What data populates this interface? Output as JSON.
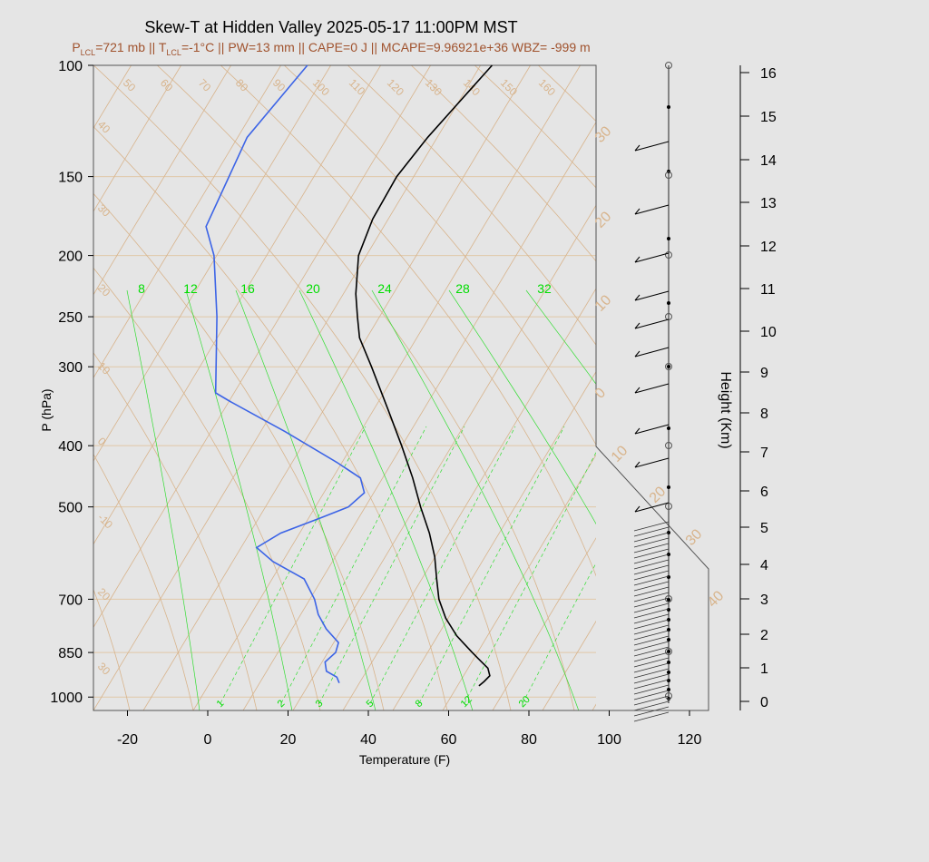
{
  "title": "Skew-T at Hidden Valley 2025-05-17 11:00PM MST",
  "subtitle": {
    "plcl_sym": "P",
    "plcl_sub": "LCL",
    "plcl_val": "=721 mb || ",
    "tlcl_sym": "T",
    "tlcl_sub": "LCL",
    "tlcl_val": "=-1°C || PW=13 mm || CAPE=0 J || MCAPE=9.96921e+36 WBZ= -999 m"
  },
  "colors": {
    "background": "#e5e5e5",
    "isotherm": "#d8b48c",
    "isobar": "#e0c8a8",
    "temperature": "#000000",
    "dewpoint": "#3c64e6",
    "mixing_ratio": "#33dd33",
    "subtitle": "#a0522d"
  },
  "chart_data": {
    "type": "skew-t",
    "xlabel": "Temperature (F)",
    "ylabel": "P (hPa)",
    "y2label": "Height (Km)",
    "x_ticks": [
      "-20",
      "0",
      "20",
      "40",
      "60",
      "80",
      "100",
      "120"
    ],
    "x_tick_values": [
      -20,
      0,
      20,
      40,
      60,
      80,
      100,
      120
    ],
    "p_ticks": [
      "100",
      "150",
      "200",
      "250",
      "300",
      "400",
      "500",
      "700",
      "850",
      "1000"
    ],
    "p_tick_values": [
      100,
      150,
      200,
      250,
      300,
      400,
      500,
      700,
      850,
      1000
    ],
    "height_ticks": [
      "0",
      "1",
      "2",
      "3",
      "4",
      "5",
      "6",
      "7",
      "8",
      "9",
      "10",
      "11",
      "12",
      "13",
      "14",
      "15",
      "16"
    ],
    "height_tick_values": [
      0,
      1,
      2,
      3,
      4,
      5,
      6,
      7,
      8,
      9,
      10,
      11,
      12,
      13,
      14,
      15,
      16
    ],
    "isotherm_labels_c": [
      "50",
      "60",
      "70",
      "80",
      "90",
      "100",
      "110",
      "120",
      "130",
      "140",
      "150",
      "160"
    ],
    "isotherm_left_labels": [
      "40",
      "30",
      "20",
      "10",
      "0",
      "-10",
      "20",
      "30"
    ],
    "isotherm_right_labels": [
      "30",
      "20",
      "10",
      "0",
      "10",
      "20",
      "30",
      "40"
    ],
    "mixing_ratio_top_labels": [
      "8",
      "12",
      "16",
      "20",
      "24",
      "28",
      "32"
    ],
    "mixing_ratio_bottom_labels": [
      "1",
      "2",
      "3",
      "5",
      "8",
      "12",
      "20"
    ],
    "temperature_profile": {
      "name": "Temperature",
      "points": [
        {
          "p": 960,
          "t": 76
        },
        {
          "p": 945,
          "t": 77
        },
        {
          "p": 925,
          "t": 78
        },
        {
          "p": 900,
          "t": 77
        },
        {
          "p": 870,
          "t": 74
        },
        {
          "p": 850,
          "t": 72
        },
        {
          "p": 800,
          "t": 67
        },
        {
          "p": 750,
          "t": 63
        },
        {
          "p": 700,
          "t": 60
        },
        {
          "p": 650,
          "t": 58
        },
        {
          "p": 600,
          "t": 56
        },
        {
          "p": 550,
          "t": 53
        },
        {
          "p": 500,
          "t": 49
        },
        {
          "p": 450,
          "t": 45
        },
        {
          "p": 400,
          "t": 40
        },
        {
          "p": 350,
          "t": 34
        },
        {
          "p": 300,
          "t": 27
        },
        {
          "p": 270,
          "t": 22
        },
        {
          "p": 250,
          "t": 20
        },
        {
          "p": 230,
          "t": 18
        },
        {
          "p": 200,
          "t": 16
        },
        {
          "p": 175,
          "t": 17
        },
        {
          "p": 150,
          "t": 20
        },
        {
          "p": 130,
          "t": 25
        },
        {
          "p": 110,
          "t": 32
        },
        {
          "p": 100,
          "t": 36
        }
      ]
    },
    "dewpoint_profile": {
      "name": "Dewpoint",
      "points": [
        {
          "p": 950,
          "t": 41
        },
        {
          "p": 930,
          "t": 40
        },
        {
          "p": 910,
          "t": 37
        },
        {
          "p": 880,
          "t": 36
        },
        {
          "p": 850,
          "t": 38
        },
        {
          "p": 820,
          "t": 38
        },
        {
          "p": 780,
          "t": 34
        },
        {
          "p": 740,
          "t": 31
        },
        {
          "p": 700,
          "t": 29
        },
        {
          "p": 650,
          "t": 25
        },
        {
          "p": 610,
          "t": 16
        },
        {
          "p": 580,
          "t": 11
        },
        {
          "p": 550,
          "t": 16
        },
        {
          "p": 520,
          "t": 25
        },
        {
          "p": 500,
          "t": 31
        },
        {
          "p": 475,
          "t": 34
        },
        {
          "p": 450,
          "t": 32
        },
        {
          "p": 425,
          "t": 25
        },
        {
          "p": 380,
          "t": 10
        },
        {
          "p": 340,
          "t": -6
        },
        {
          "p": 330,
          "t": -10
        },
        {
          "p": 250,
          "t": -15
        },
        {
          "p": 200,
          "t": -20
        },
        {
          "p": 180,
          "t": -24
        },
        {
          "p": 130,
          "t": -20
        },
        {
          "p": 100,
          "t": -10
        }
      ]
    }
  }
}
